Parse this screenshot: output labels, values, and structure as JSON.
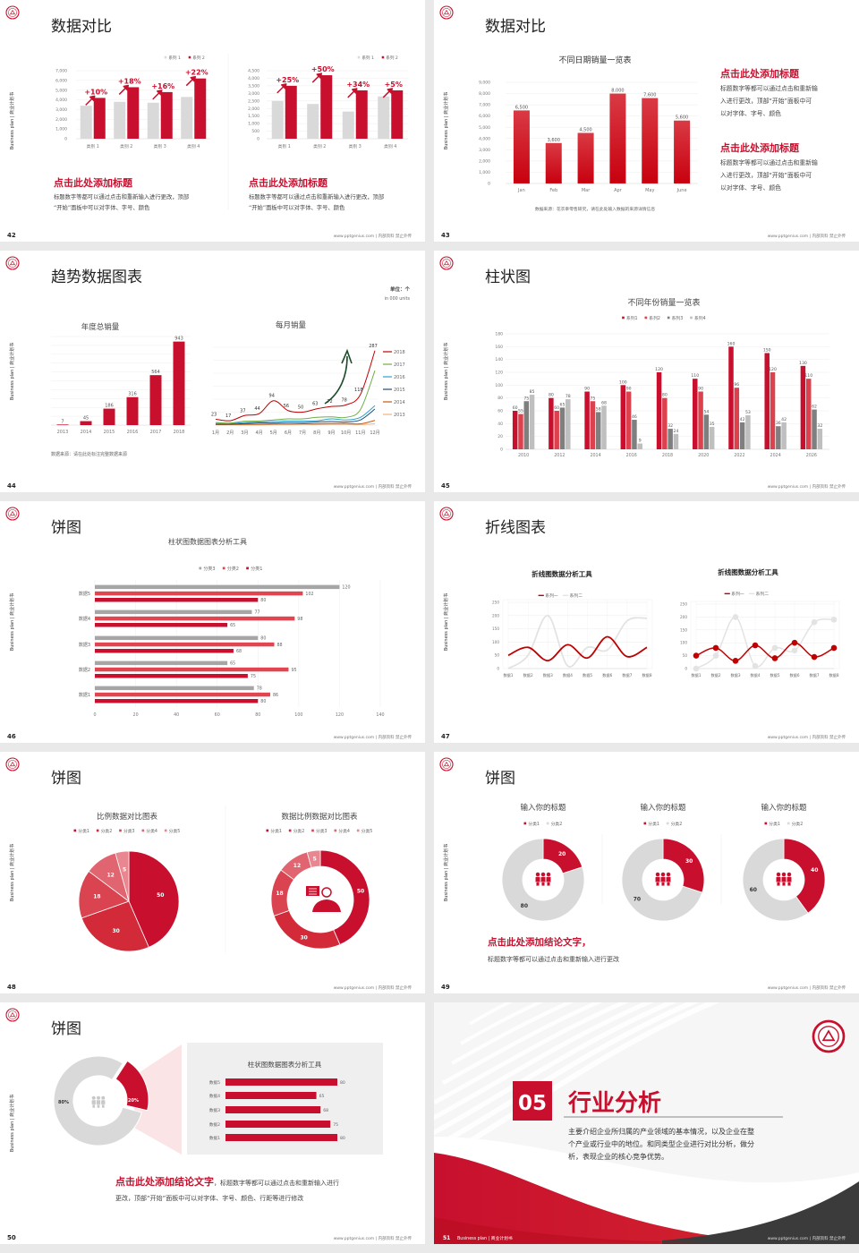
{
  "common": {
    "side_text": "Business plan | 商业计划书",
    "footer": "www.pptgenius.com | 内部资料 禁止外传",
    "accent": "#c8102e",
    "logo_icon": "school-emblem-icon"
  },
  "slides": [
    {
      "page": "42",
      "title": "数据对比",
      "blocks": [
        {
          "heading": "点击此处添加标题",
          "lines": [
            "标题数字等都可以通过点击和重新输入进行更改，顶部",
            "“开始”面板中可以对字体、字号、颜色"
          ]
        },
        {
          "heading": "点击此处添加标题",
          "lines": [
            "标题数字等都可以通过点击和重新输入进行更改，顶部",
            "“开始”面板中可以对字体、字号、颜色"
          ]
        }
      ]
    },
    {
      "page": "43",
      "title": "数据对比",
      "source": "数据来源：花衣幸零售研究，请在此处输入数据的来源详情信息",
      "blocks": [
        {
          "heading": "点击此处添加标题",
          "lines": [
            "标题数字等都可以通过点击和重新输",
            "入进行更改，顶部“开始”面板中可",
            "以对字体、字号、颜色"
          ]
        },
        {
          "heading": "点击此处添加标题",
          "lines": [
            "标题数字等都可以通过点击和重新输",
            "入进行更改，顶部“开始”面板中可",
            "以对字体、字号、颜色"
          ]
        }
      ]
    },
    {
      "page": "44",
      "title": "趋势数据图表",
      "unit": "单位：个",
      "unit_en": "in 000 units",
      "source": "数据来源：请在此处标注完整数据来源"
    },
    {
      "page": "45",
      "title": "柱状图"
    },
    {
      "page": "46",
      "title": "饼图"
    },
    {
      "page": "47",
      "title": "折线图表"
    },
    {
      "page": "48",
      "title": "饼图"
    },
    {
      "page": "49",
      "title": "饼图",
      "conclusion": "点击此处添加结论文字，",
      "body": "标题数字等都可以通过点击和重新输入进行更改"
    },
    {
      "page": "50",
      "title": "饼图",
      "conclusion": "点击此处添加结论文字",
      "body_lines": [
        "，标题数字等都可以通过点击和重新输入进行",
        "更改，顶部“开始”面板中可以对字体、字号、颜色、行距等进行修改"
      ]
    },
    {
      "page": "51",
      "number": "05",
      "title": "行业分析",
      "lines": [
        "主要介绍企业所归属的产业领域的基本情况，以及企业在整",
        "个产业或行业中的地位。和同类型企业进行对比分析，做分",
        "析，表现企业的核心竞争优势。"
      ],
      "footer_left": "Business plan | 商业计划书"
    }
  ],
  "chart_data": [
    {
      "type": "bar",
      "categories": [
        "类别 1",
        "类别 2",
        "类别 3",
        "类别 4"
      ],
      "series": [
        {
          "name": "系列 1",
          "values": [
            3400,
            3800,
            3700,
            4300
          ],
          "color": "#d9d9d9"
        },
        {
          "name": "系列 2",
          "values": [
            4200,
            5300,
            4800,
            6200
          ],
          "color": "#c8102e"
        }
      ],
      "annotations": [
        "+10%",
        "+18%",
        "+16%",
        "+22%"
      ],
      "ylim": [
        0,
        7000
      ],
      "yticks": [
        "0",
        "1,000",
        "2,000",
        "3,000",
        "4,000",
        "5,000",
        "6,000",
        "7,000"
      ],
      "grid": true,
      "legend": "top-right"
    },
    {
      "type": "bar",
      "categories": [
        "类别 1",
        "类别 2",
        "类别 3",
        "类别 4"
      ],
      "series": [
        {
          "name": "系列 1",
          "values": [
            2500,
            2300,
            1800,
            2800
          ],
          "color": "#d9d9d9"
        },
        {
          "name": "系列 2",
          "values": [
            3500,
            4200,
            3200,
            3200
          ],
          "color": "#c8102e"
        }
      ],
      "annotations": [
        "+25%",
        "+50%",
        "+34%",
        "+5%"
      ],
      "ylim": [
        0,
        4500
      ],
      "yticks": [
        "0",
        "500",
        "1,000",
        "1,500",
        "2,000",
        "2,500",
        "3,000",
        "3,500",
        "4,000",
        "4,500"
      ],
      "grid": true,
      "legend": "top-right"
    },
    {
      "type": "bar",
      "title": "不同日期销量一览表",
      "categories": [
        "Jan",
        "Feb",
        "Mar",
        "Apr",
        "May",
        "June"
      ],
      "values": [
        6500,
        3600,
        4500,
        8000,
        7600,
        5600
      ],
      "data_labels": [
        "6,500",
        "3,600",
        "4,500",
        "8,000",
        "7,600",
        "5,600"
      ],
      "ylim": [
        0,
        9000
      ],
      "yticks": [
        "0",
        "1,000",
        "2,000",
        "3,000",
        "4,000",
        "5,000",
        "6,000",
        "7,000",
        "8,000",
        "9,000"
      ],
      "color": "#c8102e",
      "grid": true
    },
    {
      "type": "bar",
      "title": "年度总销量",
      "categories": [
        "2013",
        "2014",
        "2015",
        "2016",
        "2017",
        "2018"
      ],
      "values": [
        7,
        45,
        186,
        316,
        564,
        943
      ],
      "ylim": [
        0,
        1000
      ],
      "color": "#c8102e",
      "grid": true
    },
    {
      "type": "line",
      "title": "每月销量",
      "categories": [
        "1月",
        "2月",
        "3月",
        "4月",
        "5月",
        "6月",
        "7月",
        "8月",
        "9月",
        "10月",
        "11月",
        "12月"
      ],
      "series": [
        {
          "name": "2018",
          "values": [
            23,
            17,
            37,
            44,
            94,
            56,
            50,
            63,
            72,
            78,
            118,
            287
          ],
          "color": "#c00000"
        },
        {
          "name": "2017",
          "values": [
            10,
            8,
            15,
            16,
            20,
            24,
            24,
            30,
            32,
            30,
            60,
            210
          ],
          "color": "#70ad47"
        },
        {
          "name": "2016",
          "values": [
            6,
            6,
            10,
            12,
            14,
            16,
            16,
            17,
            24,
            20,
            30,
            75
          ],
          "color": "#2e9fd0"
        },
        {
          "name": "2015",
          "values": [
            4,
            4,
            6,
            8,
            8,
            10,
            10,
            12,
            14,
            12,
            20,
            62
          ],
          "color": "#1f4e79"
        },
        {
          "name": "2014",
          "values": [
            2,
            2,
            3,
            3,
            4,
            4,
            5,
            5,
            6,
            6,
            5,
            18
          ],
          "color": "#c55a11"
        },
        {
          "name": "2013",
          "values": [
            1,
            1,
            1,
            1,
            2,
            2,
            2,
            2,
            3,
            3,
            2,
            5
          ],
          "color": "#f4b183"
        }
      ],
      "ylim": [
        0,
        300
      ],
      "grid": true,
      "legend": "right",
      "arrow_color": "#1e4d2b"
    },
    {
      "type": "bar",
      "title": "不同年份销量一览表",
      "categories": [
        "2010",
        "2012",
        "2014",
        "2016",
        "2018",
        "2020",
        "2022",
        "2024",
        "2026"
      ],
      "series": [
        {
          "name": "系列1",
          "values": [
            60,
            80,
            90,
            100,
            120,
            110,
            160,
            150,
            130
          ],
          "color": "#c8102e"
        },
        {
          "name": "系列2",
          "values": [
            55,
            60,
            75,
            90,
            80,
            90,
            96,
            120,
            110
          ],
          "color": "#dc424e"
        },
        {
          "name": "系列3",
          "values": [
            75,
            65,
            58,
            46,
            32,
            54,
            42,
            36,
            62
          ],
          "color": "#7f7f7f"
        },
        {
          "name": "系列4",
          "values": [
            85,
            78,
            68,
            9,
            24,
            35,
            53,
            42,
            32
          ],
          "color": "#bfbfbf"
        }
      ],
      "ylim": [
        0,
        180
      ],
      "yticks": [
        "0",
        "20",
        "40",
        "60",
        "80",
        "100",
        "120",
        "140",
        "160",
        "180"
      ],
      "grid": true,
      "legend": "top"
    },
    {
      "type": "bar",
      "orientation": "horizontal",
      "title": "柱状图数据图表分析工具",
      "categories": [
        "数据5",
        "数据4",
        "数据3",
        "数据2",
        "数据1"
      ],
      "series": [
        {
          "name": "分类3",
          "values": [
            120,
            77,
            80,
            65,
            78
          ],
          "color": "#a6a6a6"
        },
        {
          "name": "分类2",
          "values": [
            102,
            98,
            88,
            95,
            86
          ],
          "color": "#e04550"
        },
        {
          "name": "分类1",
          "values": [
            80,
            65,
            68,
            75,
            80
          ],
          "color": "#c8102e"
        }
      ],
      "xlim": [
        0,
        140
      ],
      "xticks": [
        "0",
        "20",
        "40",
        "60",
        "80",
        "100",
        "120",
        "140"
      ],
      "grid": true,
      "legend": "top"
    },
    {
      "type": "line",
      "title": "折线图数据分析工具",
      "smooth": true,
      "categories": [
        "数据1",
        "数据2",
        "数据3",
        "数据4",
        "数据5",
        "数据6",
        "数据7",
        "数据8"
      ],
      "series": [
        {
          "name": "系列一",
          "values": [
            50,
            80,
            30,
            90,
            40,
            120,
            45,
            80
          ],
          "color": "#c00000"
        },
        {
          "name": "系列二",
          "values": [
            0,
            50,
            200,
            10,
            80,
            70,
            180,
            190
          ],
          "color": "#e3e3e3"
        }
      ],
      "ylim": [
        0,
        250
      ],
      "yticks": [
        "0",
        "50",
        "100",
        "150",
        "200",
        "250"
      ],
      "grid": true,
      "legend": "top"
    },
    {
      "type": "line",
      "title": "折线图数据分析工具",
      "markers": true,
      "categories": [
        "数据1",
        "数据2",
        "数据3",
        "数据4",
        "数据5",
        "数据6",
        "数据7",
        "数据8"
      ],
      "series": [
        {
          "name": "系列一",
          "values": [
            50,
            80,
            30,
            90,
            40,
            100,
            45,
            80
          ],
          "color": "#c00000"
        },
        {
          "name": "系列二",
          "values": [
            0,
            50,
            200,
            10,
            80,
            70,
            180,
            190
          ],
          "color": "#e3e3e3"
        }
      ],
      "ylim": [
        0,
        250
      ],
      "yticks": [
        "0",
        "50",
        "100",
        "150",
        "200",
        "250"
      ],
      "grid": true,
      "legend": "top"
    },
    {
      "type": "pie",
      "title": "比例数据对比图表",
      "labels": [
        "分类1",
        "分类2",
        "分类3",
        "分类4",
        "分类5"
      ],
      "values": [
        50,
        30,
        18,
        12,
        5
      ],
      "colors": [
        "#c8102e",
        "#d32a39",
        "#da4450",
        "#e06570",
        "#e8878f"
      ],
      "legend": "top"
    },
    {
      "type": "pie",
      "donut": true,
      "title": "数据比例数据对比图表",
      "labels": [
        "分类1",
        "分类2",
        "分类3",
        "分类4",
        "分类5"
      ],
      "values": [
        50,
        30,
        18,
        12,
        5
      ],
      "colors": [
        "#c8102e",
        "#d32a39",
        "#da4450",
        "#e06570",
        "#e8878f"
      ],
      "legend": "top",
      "center_icon": "person-presenter-icon"
    },
    {
      "type": "pie",
      "donut": true,
      "title": "输入你的标题",
      "labels": [
        "分类1",
        "分类2"
      ],
      "values": [
        20,
        80
      ],
      "colors": [
        "#c8102e",
        "#d9d9d9"
      ],
      "center_icon": "team-icon"
    },
    {
      "type": "pie",
      "donut": true,
      "title": "输入你的标题",
      "labels": [
        "分类1",
        "分类2"
      ],
      "values": [
        30,
        70
      ],
      "colors": [
        "#c8102e",
        "#d9d9d9"
      ],
      "center_icon": "team-icon"
    },
    {
      "type": "pie",
      "donut": true,
      "title": "输入你的标题",
      "labels": [
        "分类1",
        "分类2"
      ],
      "values": [
        40,
        60
      ],
      "colors": [
        "#c8102e",
        "#d9d9d9"
      ],
      "center_icon": "team-icon"
    },
    {
      "type": "pie",
      "donut": true,
      "values": [
        20,
        80
      ],
      "data_labels": [
        "20%",
        "80%"
      ],
      "colors": [
        "#c8102e",
        "#d9d9d9"
      ],
      "center_icon": "team-icon"
    },
    {
      "type": "bar",
      "orientation": "horizontal",
      "title": "柱状图数据图表分析工具",
      "categories": [
        "数据5",
        "数据4",
        "数据3",
        "数据2",
        "数据1"
      ],
      "values": [
        80,
        65,
        68,
        75,
        80
      ],
      "color": "#c8102e"
    }
  ]
}
